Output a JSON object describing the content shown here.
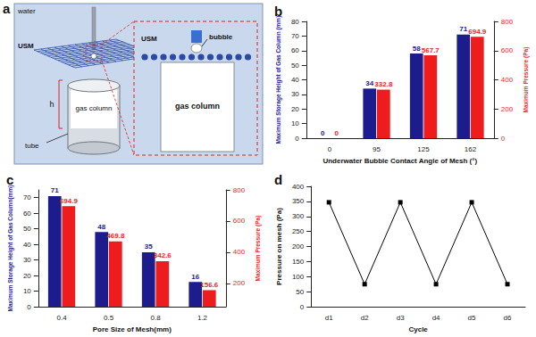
{
  "diagram": {
    "title": "a",
    "medium": "water",
    "mesh": "USM",
    "column": "gas column",
    "height": "h",
    "tube": "tube",
    "inset": {
      "mesh": "USM",
      "bubble": "bubble",
      "column": "gas column"
    }
  },
  "chart_data": [
    {
      "title": "b",
      "type": "bar",
      "categories": [
        "0",
        "95",
        "125",
        "162"
      ],
      "xlabel": "Underwater Bubble Contact Angle of Mesh (°)",
      "ylabel": "Maximum Storage Height of Gas Column (mm)",
      "y2label": "Maximum Pressure (Pa)",
      "ylim": [
        0,
        80
      ],
      "yticks": [
        0,
        10,
        20,
        30,
        40,
        50,
        60,
        70,
        80
      ],
      "y2lim": [
        0,
        800
      ],
      "y2ticks": [
        0,
        200,
        400,
        600,
        800
      ],
      "data_labels": true,
      "series": [
        {
          "color": "#1c1c8c",
          "values": [
            0,
            34,
            58,
            71
          ]
        },
        {
          "color": "#ee1c1c",
          "values": [
            0,
            332.8,
            567.7,
            694.9
          ],
          "axis": "y2"
        }
      ]
    },
    {
      "title": "c",
      "type": "bar",
      "categories": [
        "0.4",
        "0.5",
        "0.8",
        "1.2"
      ],
      "xlabel": "Pore Size of Mesh(mm)",
      "ylabel": "Maximum Storage Height of Gas Column(mm)",
      "y2label": "Maximum Pressure (Pa)",
      "ylim": [
        0,
        75
      ],
      "yticks": [
        0,
        10,
        20,
        30,
        40,
        50,
        60,
        70
      ],
      "y2lim": [
        50,
        800
      ],
      "y2ticks": [
        200,
        400,
        600,
        800
      ],
      "data_labels": true,
      "series": [
        {
          "color": "#1c1c8c",
          "values": [
            71,
            48,
            35,
            16
          ]
        },
        {
          "color": "#ee1c1c",
          "values": [
            694.9,
            469.8,
            342.6,
            156.6
          ],
          "axis": "y2"
        }
      ]
    },
    {
      "title": "d",
      "type": "line",
      "categories": [
        "d1",
        "d2",
        "d3",
        "d4",
        "d5",
        "d6"
      ],
      "xlabel": "Cycle",
      "ylabel": "Pressure on mesh (Pa)",
      "ylim": [
        0,
        400
      ],
      "yticks": [
        0,
        50,
        100,
        150,
        200,
        250,
        300,
        350,
        400
      ],
      "color": "#000000",
      "marker": "square",
      "values": [
        347,
        75,
        347,
        75,
        347,
        75
      ]
    }
  ]
}
